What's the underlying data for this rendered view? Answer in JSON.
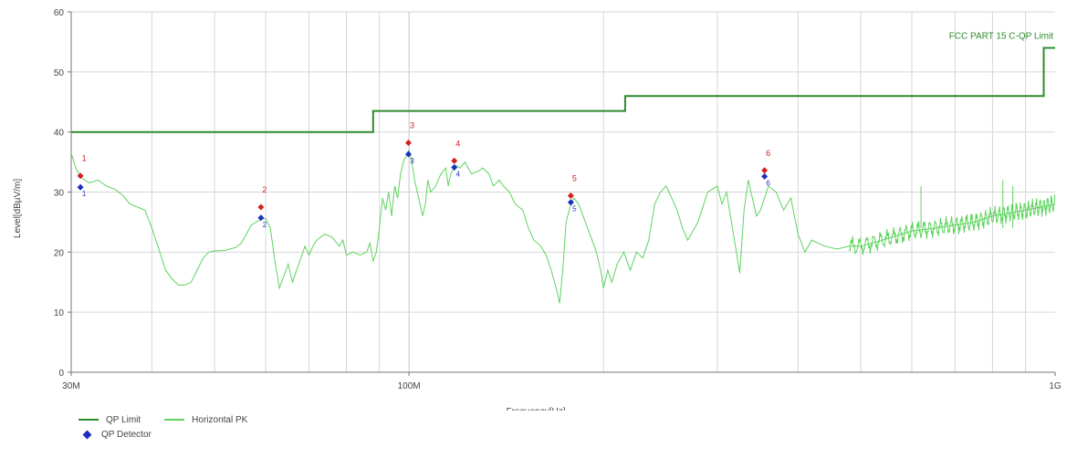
{
  "chart_data": {
    "type": "line",
    "xscale": "log",
    "xlim": [
      "30M",
      "1G"
    ],
    "ylim": [
      0,
      60
    ],
    "xlabel": "Frequency[Hz]",
    "ylabel": "Level[dBµV/m]",
    "x_major_ticks": [
      {
        "value": 30000000,
        "label": "30M"
      },
      {
        "value": 100000000,
        "label": "100M"
      },
      {
        "value": 1000000000,
        "label": "1G"
      }
    ],
    "y_ticks": [
      0,
      10,
      20,
      30,
      40,
      50,
      60
    ],
    "grid": true,
    "limit_line_label": "FCC PART 15 C-QP Limit",
    "series": [
      {
        "name": "QP Limit",
        "color": "#2e8b2e",
        "step": true,
        "points": [
          [
            30,
            40
          ],
          [
            88,
            40
          ],
          [
            88,
            43.5
          ],
          [
            216,
            43.5
          ],
          [
            216,
            46
          ],
          [
            960,
            46
          ],
          [
            960,
            54
          ],
          [
            1000,
            54
          ]
        ]
      },
      {
        "name": "Horizontal PK",
        "color": "#5fd35f",
        "points": [
          [
            30,
            36.5
          ],
          [
            30.5,
            34
          ],
          [
            31,
            32.5
          ],
          [
            32,
            31.5
          ],
          [
            33,
            32
          ],
          [
            34,
            31
          ],
          [
            35,
            30.5
          ],
          [
            36,
            29.5
          ],
          [
            37,
            28
          ],
          [
            38,
            27.5
          ],
          [
            39,
            27
          ],
          [
            40,
            24
          ],
          [
            41,
            20.5
          ],
          [
            42,
            17
          ],
          [
            43,
            15.5
          ],
          [
            44,
            14.5
          ],
          [
            45,
            14.5
          ],
          [
            46,
            15
          ],
          [
            47,
            17
          ],
          [
            48,
            19
          ],
          [
            49,
            20
          ],
          [
            50,
            20.2
          ],
          [
            52,
            20.3
          ],
          [
            54,
            20.8
          ],
          [
            55,
            21.5
          ],
          [
            56,
            23
          ],
          [
            57,
            24.5
          ],
          [
            58,
            25
          ],
          [
            59,
            25.5
          ],
          [
            60,
            25.6
          ],
          [
            61,
            24
          ],
          [
            62,
            18.5
          ],
          [
            63,
            14
          ],
          [
            64,
            16
          ],
          [
            65,
            18
          ],
          [
            66,
            15
          ],
          [
            67,
            17
          ],
          [
            68,
            19
          ],
          [
            69,
            21
          ],
          [
            70,
            19.5
          ],
          [
            71,
            21
          ],
          [
            72,
            22
          ],
          [
            74,
            23
          ],
          [
            76,
            22.5
          ],
          [
            78,
            21
          ],
          [
            79,
            22
          ],
          [
            80,
            19.5
          ],
          [
            82,
            20
          ],
          [
            84,
            19.5
          ],
          [
            86,
            20
          ],
          [
            87,
            21.5
          ],
          [
            88,
            18.5
          ],
          [
            89,
            20
          ],
          [
            90,
            24
          ],
          [
            91,
            29
          ],
          [
            92,
            27
          ],
          [
            93,
            30
          ],
          [
            94,
            26
          ],
          [
            95,
            31
          ],
          [
            96,
            29
          ],
          [
            97,
            33
          ],
          [
            98,
            35
          ],
          [
            99,
            36
          ],
          [
            100,
            37
          ],
          [
            101,
            35
          ],
          [
            102,
            32
          ],
          [
            103,
            30
          ],
          [
            104,
            28
          ],
          [
            105,
            26
          ],
          [
            106,
            28
          ],
          [
            107,
            32
          ],
          [
            108,
            30
          ],
          [
            110,
            31
          ],
          [
            112,
            33
          ],
          [
            114,
            34
          ],
          [
            115,
            31
          ],
          [
            116,
            33
          ],
          [
            118,
            34.5
          ],
          [
            120,
            34
          ],
          [
            122,
            35
          ],
          [
            125,
            33
          ],
          [
            128,
            33.5
          ],
          [
            130,
            34
          ],
          [
            133,
            33
          ],
          [
            135,
            31
          ],
          [
            138,
            32
          ],
          [
            140,
            31
          ],
          [
            143,
            30
          ],
          [
            146,
            28
          ],
          [
            150,
            27
          ],
          [
            153,
            24
          ],
          [
            156,
            22
          ],
          [
            160,
            21
          ],
          [
            163,
            19.5
          ],
          [
            166,
            17
          ],
          [
            169,
            14
          ],
          [
            171,
            11.5
          ],
          [
            173,
            17
          ],
          [
            175,
            25
          ],
          [
            178,
            28
          ],
          [
            180,
            29
          ],
          [
            183,
            28
          ],
          [
            186,
            26
          ],
          [
            189,
            24
          ],
          [
            192,
            22
          ],
          [
            195,
            20
          ],
          [
            198,
            17
          ],
          [
            200,
            14
          ],
          [
            203,
            17
          ],
          [
            206,
            15
          ],
          [
            210,
            18
          ],
          [
            215,
            20
          ],
          [
            220,
            17
          ],
          [
            225,
            20
          ],
          [
            230,
            19
          ],
          [
            235,
            22
          ],
          [
            240,
            28
          ],
          [
            245,
            30
          ],
          [
            250,
            31
          ],
          [
            255,
            29
          ],
          [
            260,
            27
          ],
          [
            265,
            24
          ],
          [
            270,
            22
          ],
          [
            280,
            25
          ],
          [
            290,
            30
          ],
          [
            300,
            31
          ],
          [
            305,
            28
          ],
          [
            310,
            30
          ],
          [
            320,
            21
          ],
          [
            325,
            16.5
          ],
          [
            330,
            27
          ],
          [
            335,
            32
          ],
          [
            340,
            29
          ],
          [
            345,
            26
          ],
          [
            350,
            27
          ],
          [
            360,
            31
          ],
          [
            370,
            30
          ],
          [
            380,
            27
          ],
          [
            390,
            29
          ],
          [
            400,
            23
          ],
          [
            410,
            20
          ],
          [
            420,
            22
          ],
          [
            440,
            21
          ],
          [
            460,
            20.5
          ],
          [
            480,
            21
          ],
          [
            500,
            21
          ],
          [
            520,
            21.5
          ],
          [
            540,
            22
          ],
          [
            560,
            22.5
          ],
          [
            580,
            23
          ],
          [
            600,
            23.5
          ],
          [
            650,
            24
          ],
          [
            700,
            24.5
          ],
          [
            750,
            25
          ],
          [
            800,
            26
          ],
          [
            850,
            26.5
          ],
          [
            900,
            27
          ],
          [
            950,
            27.5
          ],
          [
            1000,
            28
          ]
        ]
      }
    ],
    "spikes_mhz": [
      620,
      830,
      860
    ],
    "markers": [
      {
        "id": "1",
        "freq_mhz": 31,
        "pk": 32.7,
        "qp": 30.8
      },
      {
        "id": "2",
        "freq_mhz": 59,
        "pk": 27.5,
        "qp": 25.7
      },
      {
        "id": "3",
        "freq_mhz": 99.8,
        "pk": 38.2,
        "qp": 36.3
      },
      {
        "id": "4",
        "freq_mhz": 117.5,
        "pk": 35.2,
        "qp": 34.1
      },
      {
        "id": "5",
        "freq_mhz": 178,
        "pk": 29.4,
        "qp": 28.3
      },
      {
        "id": "6",
        "freq_mhz": 355,
        "pk": 33.6,
        "qp": 32.6
      }
    ],
    "legend": {
      "qp_limit": "QP Limit",
      "horizontal_pk": "Horizontal PK",
      "qp_detector": "QP Detector"
    },
    "colors": {
      "pk_marker": "#d42020",
      "qp_marker": "#1a2ec0",
      "marker_label": "#d42020",
      "qp_marker_label": "#2233cc"
    }
  }
}
